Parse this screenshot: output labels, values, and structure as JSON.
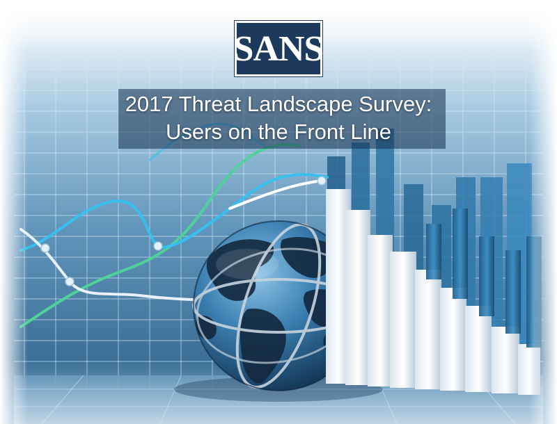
{
  "logo": {
    "text": "SANS"
  },
  "cover": {
    "title_line1": "2017 Threat Landscape Survey:",
    "title_line2": "Users on the Front Line"
  },
  "colors": {
    "logo_background": "#1d3a5c",
    "grid_blue": "#5f9bc7",
    "line_cyan": "#36c0f0",
    "line_green": "#4fd29a",
    "line_white": "#e8f1fb",
    "globe_ocean": "#2e6f9e",
    "globe_land": "#162a3e"
  }
}
